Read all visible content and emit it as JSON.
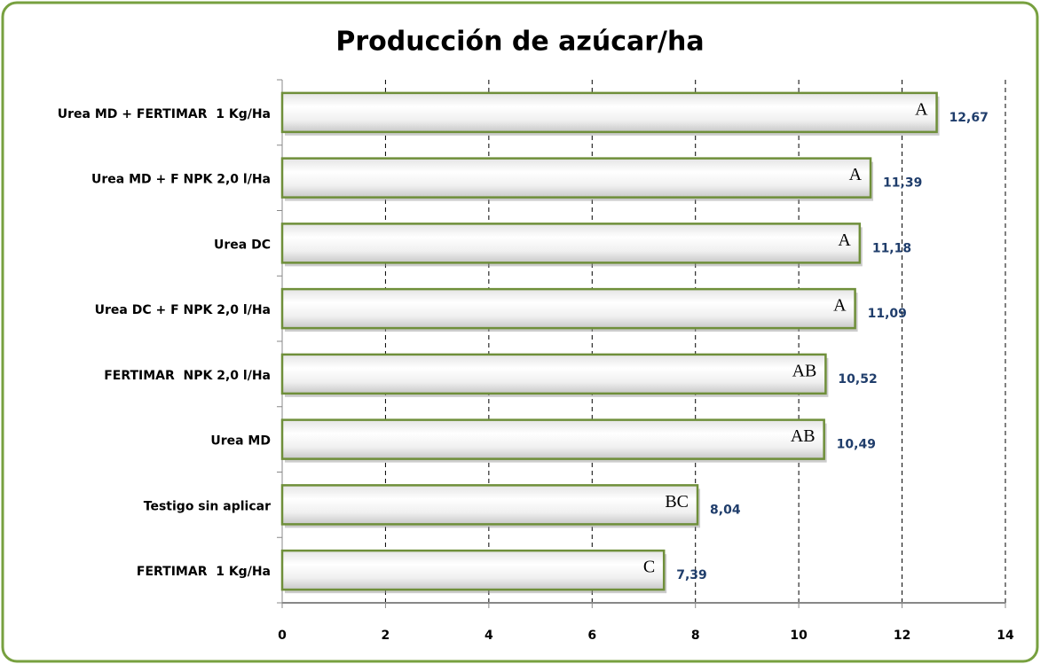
{
  "chart_data": {
    "type": "bar",
    "orientation": "horizontal",
    "title": "Producción de azúcar/ha",
    "categories": [
      "Urea MD + FERTIMAR  1 Kg/Ha",
      "Urea MD + F NPK 2,0 l/Ha",
      "Urea DC",
      "Urea DC + F NPK 2,0 l/Ha",
      "FERTIMAR  NPK 2,0 l/Ha",
      "Urea MD",
      "Testigo sin aplicar",
      "FERTIMAR  1 Kg/Ha"
    ],
    "values": [
      12.67,
      11.39,
      11.18,
      11.09,
      10.52,
      10.49,
      8.04,
      7.39
    ],
    "value_labels": [
      "12,67",
      "11,39",
      "11,18",
      "11,09",
      "10,52",
      "10,49",
      "8,04",
      "7,39"
    ],
    "annotations": [
      "A",
      "A",
      "A",
      "A",
      "AB",
      "AB",
      "BC",
      "C"
    ],
    "color": "#6f8f3a",
    "xlim": [
      0,
      14
    ],
    "xticks": [
      0,
      2,
      4,
      6,
      8,
      10,
      12,
      14
    ],
    "grid": true
  }
}
